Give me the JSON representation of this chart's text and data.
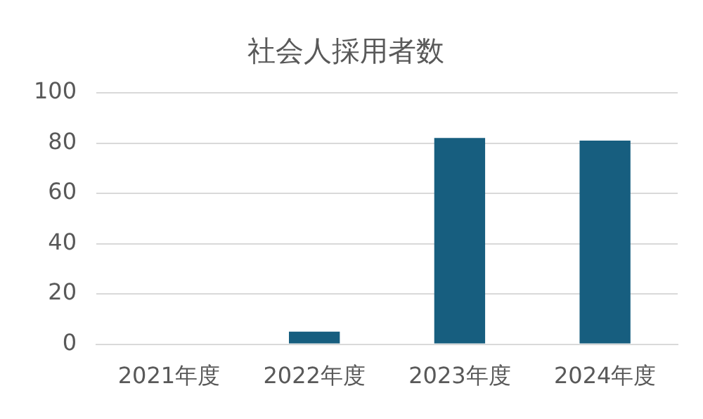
{
  "chart_data": {
    "type": "bar",
    "title": "社会人採用者数",
    "categories": [
      "2021年度",
      "2022年度",
      "2023年度",
      "2024年度"
    ],
    "values": [
      0,
      5,
      82,
      81
    ],
    "color": "#175e7f",
    "ylim": [
      0,
      100
    ],
    "yticks": [
      0,
      20,
      40,
      60,
      80,
      100
    ],
    "grid": "y"
  }
}
